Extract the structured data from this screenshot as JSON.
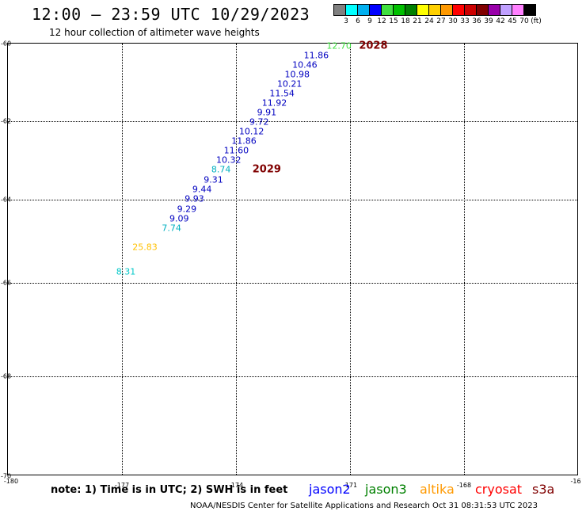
{
  "header": {
    "title": "12:00 – 23:59 UTC 10/29/2023",
    "subtitle": "12 hour collection of altimeter wave heights"
  },
  "color_scale": {
    "swatches": [
      "#808080",
      "#00ffff",
      "#00b0f0",
      "#0000ff",
      "#40e040",
      "#00c000",
      "#008000",
      "#ffff00",
      "#ffd000",
      "#ff9900",
      "#ff0000",
      "#cc0000",
      "#800000",
      "#9900aa",
      "#c0a0ff",
      "#ff80ff",
      "#000000"
    ],
    "labels": [
      "3",
      "6",
      "9",
      "12",
      "15",
      "18",
      "21",
      "24",
      "27",
      "30",
      "33",
      "36",
      "39",
      "42",
      "45",
      "70",
      "(ft)"
    ]
  },
  "map": {
    "lat_ticks": [
      "-60",
      "-62",
      "-64",
      "-66",
      "-68",
      "-70"
    ],
    "lon_ticks": [
      "-180",
      "-177",
      "-174",
      "-171",
      "-168",
      "-16"
    ],
    "observations": [
      {
        "value": "12.70",
        "lat": -60.05,
        "lon": -171.3,
        "color": "#40e040"
      },
      {
        "value": "11.86",
        "lat": -60.27,
        "lon": -171.9,
        "color": "#0000c0"
      },
      {
        "value": "10.46",
        "lat": -60.49,
        "lon": -172.2,
        "color": "#0000c0"
      },
      {
        "value": "10.98",
        "lat": -60.71,
        "lon": -172.4,
        "color": "#0000c0"
      },
      {
        "value": "10.21",
        "lat": -60.93,
        "lon": -172.6,
        "color": "#0000c0"
      },
      {
        "value": "11.54",
        "lat": -61.15,
        "lon": -172.8,
        "color": "#0000c0"
      },
      {
        "value": "11.92",
        "lat": -61.37,
        "lon": -173.0,
        "color": "#0000c0"
      },
      {
        "value": "9.91",
        "lat": -61.59,
        "lon": -173.2,
        "color": "#0000c0"
      },
      {
        "value": "9.72",
        "lat": -61.81,
        "lon": -173.4,
        "color": "#0000c0"
      },
      {
        "value": "10.12",
        "lat": -62.03,
        "lon": -173.6,
        "color": "#0000c0"
      },
      {
        "value": "11.86",
        "lat": -62.25,
        "lon": -173.8,
        "color": "#0000c0"
      },
      {
        "value": "11.60",
        "lat": -62.47,
        "lon": -174.0,
        "color": "#0000c0"
      },
      {
        "value": "10.32",
        "lat": -62.69,
        "lon": -174.2,
        "color": "#0000c0"
      },
      {
        "value": "8.74",
        "lat": -62.92,
        "lon": -174.4,
        "color": "#00b0c0"
      },
      {
        "value": "9.31",
        "lat": -63.15,
        "lon": -174.6,
        "color": "#0000c0"
      },
      {
        "value": "9.44",
        "lat": -63.37,
        "lon": -174.9,
        "color": "#0000c0"
      },
      {
        "value": "9.93",
        "lat": -63.59,
        "lon": -175.1,
        "color": "#0000c0"
      },
      {
        "value": "9.29",
        "lat": -63.82,
        "lon": -175.3,
        "color": "#0000c0"
      },
      {
        "value": "9.09",
        "lat": -64.04,
        "lon": -175.5,
        "color": "#0000c0"
      },
      {
        "value": "7.74",
        "lat": -64.27,
        "lon": -175.7,
        "color": "#00b0c0"
      },
      {
        "value": "25.83",
        "lat": -64.7,
        "lon": -176.4,
        "color": "#ffc000"
      },
      {
        "value": "8.31",
        "lat": -65.28,
        "lon": -176.9,
        "color": "#00c8c8"
      }
    ],
    "pass_labels": [
      {
        "text": "2028",
        "lat": -60.05,
        "lon": -170.4,
        "color": "#800000"
      },
      {
        "text": "2029",
        "lat": -62.92,
        "lon": -173.2,
        "color": "#800000"
      }
    ]
  },
  "legend": {
    "note": "note: 1) Time is in UTC; 2) SWH is in feet",
    "satellites": [
      {
        "name": "jason2",
        "color": "#0000ff"
      },
      {
        "name": "jason3",
        "color": "#008000"
      },
      {
        "name": "altika",
        "color": "#ff9900"
      },
      {
        "name": "cryosat",
        "color": "#ff0000"
      },
      {
        "name": "s3a",
        "color": "#800000"
      }
    ]
  },
  "footer": "NOAA/NESDIS Center for Satellite Applications and Research    Oct 31 08:31:53 UTC 2023"
}
